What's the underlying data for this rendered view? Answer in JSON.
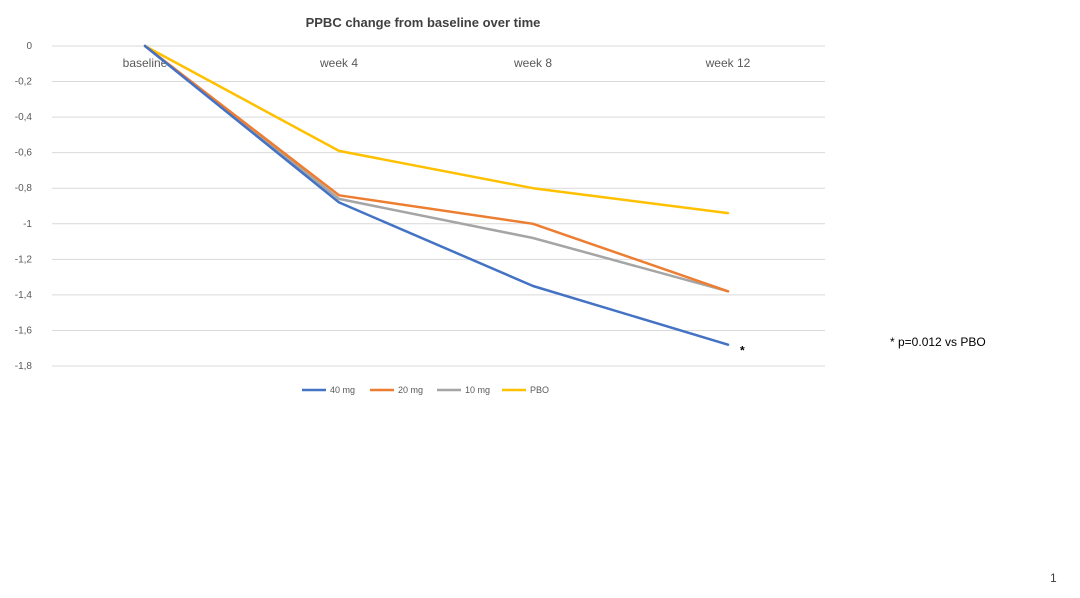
{
  "chart_data": {
    "type": "line",
    "title": "PPBC change from baseline over time",
    "categories": [
      "baseline",
      "week 4",
      "week 8",
      "week 12"
    ],
    "ylim": [
      -1.8,
      0
    ],
    "yticks": [
      "0",
      "-0,2",
      "-0,4",
      "-0,6",
      "-0,8",
      "-1",
      "-1,2",
      "-1,4",
      "-1,6",
      "-1,8"
    ],
    "grid": true,
    "legend_position": "bottom",
    "series": [
      {
        "name": "40 mg",
        "color": "#4472C4",
        "values": [
          0,
          -0.88,
          -1.35,
          -1.68
        ]
      },
      {
        "name": "20 mg",
        "color": "#ED7D31",
        "values": [
          0,
          -0.84,
          -1.0,
          -1.38
        ]
      },
      {
        "name": "10 mg",
        "color": "#A5A5A5",
        "values": [
          0,
          -0.86,
          -1.08,
          -1.38
        ]
      },
      {
        "name": "PBO",
        "color": "#FFC000",
        "values": [
          0,
          -0.59,
          -0.8,
          -0.94
        ]
      }
    ],
    "annotations": {
      "marker": "*",
      "note": "* p=0.012 vs PBO"
    }
  },
  "page_number": "1"
}
